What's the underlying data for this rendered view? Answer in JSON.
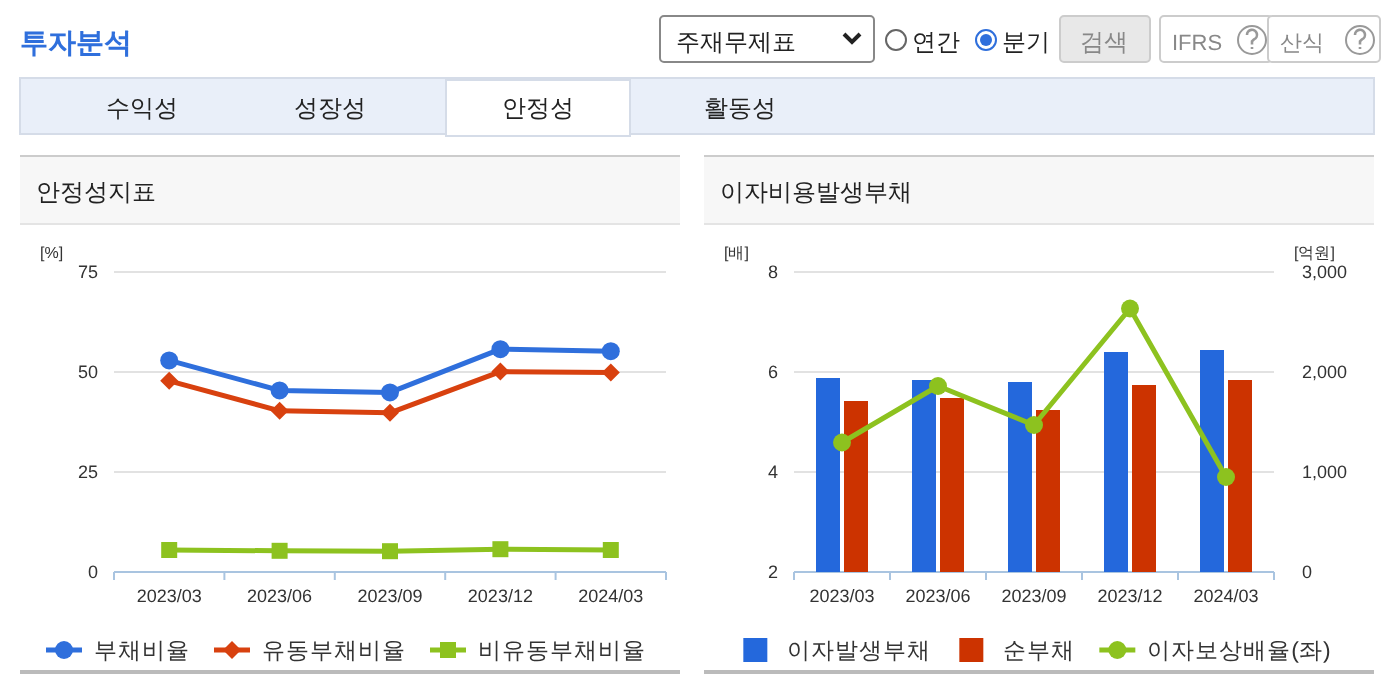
{
  "chart_data": [
    {
      "type": "other",
      "title": "투자분석",
      "annotations": [
        "주재무제표",
        "연간",
        "분기",
        "검색",
        "IFRS",
        "산식",
        "수익성",
        "성장성",
        "안정성",
        "활동성"
      ]
    },
    {
      "type": "line",
      "title": "안정성지표",
      "ylabel": "[%]",
      "categories": [
        "2023/03",
        "2023/06",
        "2023/09",
        "2023/12",
        "2024/03"
      ],
      "ylim": [
        0,
        75
      ],
      "yticks": [
        0,
        25,
        50,
        75
      ],
      "grid": "y",
      "legend": "bottom",
      "series": [
        {
          "name": "부채비율",
          "color": "#2f6fdc",
          "marker": "circle",
          "values": [
            52.9,
            45.4,
            44.9,
            55.7,
            55.2
          ]
        },
        {
          "name": "유동부채비율",
          "color": "#d8410f",
          "marker": "diamond",
          "values": [
            47.8,
            40.3,
            39.8,
            50.1,
            49.9
          ]
        },
        {
          "name": "비유동부채비율",
          "color": "#8dc21f",
          "marker": "square",
          "values": [
            5.5,
            5.3,
            5.2,
            5.7,
            5.5
          ]
        }
      ]
    },
    {
      "type": "bar",
      "title": "이자비용발생부채",
      "ylabel": "[배]",
      "y2label": "[억원]",
      "categories": [
        "2023/03",
        "2023/06",
        "2023/09",
        "2023/12",
        "2024/03"
      ],
      "ylim": [
        2,
        8
      ],
      "yticks": [
        2,
        4,
        6,
        8
      ],
      "y2lim": [
        0,
        3000
      ],
      "y2ticks": [
        0,
        {
          "value": 1000,
          "label": "1,000"
        },
        {
          "value": 2000,
          "label": "2,000"
        },
        {
          "value": 3000,
          "label": "3,000"
        }
      ],
      "grid": "y",
      "legend": "bottom",
      "series": [
        {
          "name": "이자발생부채",
          "color": "#2468dc",
          "axis": "y2",
          "values": [
            1940,
            1920,
            1900,
            2200,
            2220
          ]
        },
        {
          "name": "순부채",
          "color": "#cc3300",
          "axis": "y2",
          "values": [
            1710,
            1740,
            1620,
            1870,
            1920
          ]
        },
        {
          "name": "이자보상배율(좌)",
          "type": "line",
          "color": "#8dc21f",
          "marker": "circle",
          "values": [
            4.59,
            5.72,
            4.94,
            7.27,
            3.9
          ]
        }
      ]
    }
  ]
}
